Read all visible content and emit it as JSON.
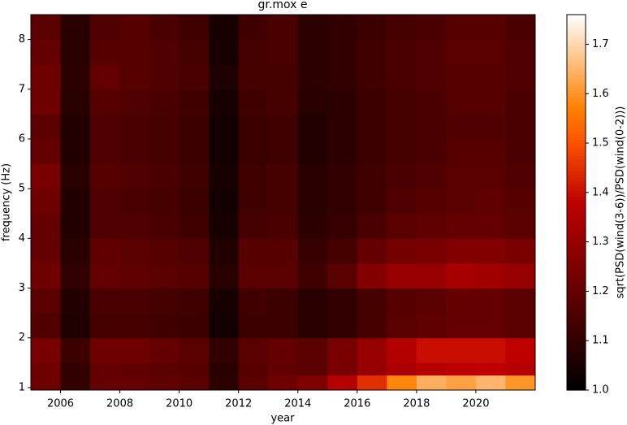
{
  "chart_data": {
    "type": "heatmap",
    "title": "gr.mox e",
    "xlabel": "year",
    "ylabel": "frequency (Hz)",
    "colorbar_label": "sqrt(PSD(wind(3-6))/PSD(wind(0-2)))",
    "colormap": "gist_heat",
    "x": [
      2005,
      2006,
      2007,
      2008,
      2009,
      2010,
      2011,
      2012,
      2013,
      2014,
      2015,
      2016,
      2017,
      2018,
      2019,
      2020,
      2021,
      2022
    ],
    "y": [
      0.95,
      1.25,
      1.5,
      2,
      2.5,
      3,
      3.5,
      4,
      4.5,
      5,
      5.5,
      6,
      6.5,
      7,
      7.5,
      8,
      8.5
    ],
    "z": [
      [
        1.22,
        1.1,
        1.2,
        1.2,
        1.19,
        1.18,
        1.09,
        1.18,
        1.22,
        1.25,
        1.36,
        1.45,
        1.58,
        1.64,
        1.62,
        1.65,
        1.6
      ],
      [
        1.22,
        1.1,
        1.2,
        1.19,
        1.18,
        1.17,
        1.08,
        1.17,
        1.19,
        1.18,
        1.24,
        1.3,
        1.34,
        1.36,
        1.37,
        1.38,
        1.36
      ],
      [
        1.24,
        1.12,
        1.22,
        1.22,
        1.2,
        1.18,
        1.1,
        1.18,
        1.2,
        1.18,
        1.24,
        1.3,
        1.36,
        1.4,
        1.4,
        1.4,
        1.38
      ],
      [
        1.16,
        1.06,
        1.14,
        1.14,
        1.13,
        1.12,
        1.04,
        1.12,
        1.12,
        1.08,
        1.1,
        1.14,
        1.18,
        1.19,
        1.2,
        1.2,
        1.18
      ],
      [
        1.18,
        1.07,
        1.15,
        1.15,
        1.14,
        1.13,
        1.05,
        1.13,
        1.12,
        1.08,
        1.1,
        1.14,
        1.17,
        1.18,
        1.2,
        1.2,
        1.18
      ],
      [
        1.22,
        1.1,
        1.2,
        1.19,
        1.18,
        1.17,
        1.08,
        1.18,
        1.18,
        1.13,
        1.18,
        1.26,
        1.3,
        1.3,
        1.33,
        1.32,
        1.3
      ],
      [
        1.2,
        1.08,
        1.19,
        1.18,
        1.17,
        1.16,
        1.07,
        1.17,
        1.17,
        1.11,
        1.14,
        1.2,
        1.23,
        1.24,
        1.26,
        1.26,
        1.24
      ],
      [
        1.2,
        1.07,
        1.16,
        1.16,
        1.15,
        1.13,
        1.05,
        1.14,
        1.15,
        1.09,
        1.11,
        1.15,
        1.18,
        1.19,
        1.2,
        1.2,
        1.18
      ],
      [
        1.22,
        1.07,
        1.16,
        1.15,
        1.14,
        1.12,
        1.04,
        1.13,
        1.14,
        1.08,
        1.1,
        1.13,
        1.16,
        1.17,
        1.18,
        1.19,
        1.17
      ],
      [
        1.24,
        1.08,
        1.17,
        1.16,
        1.15,
        1.13,
        1.05,
        1.13,
        1.14,
        1.08,
        1.1,
        1.13,
        1.15,
        1.16,
        1.18,
        1.18,
        1.16
      ],
      [
        1.2,
        1.07,
        1.16,
        1.15,
        1.14,
        1.12,
        1.04,
        1.12,
        1.13,
        1.07,
        1.09,
        1.12,
        1.14,
        1.15,
        1.17,
        1.17,
        1.15
      ],
      [
        1.18,
        1.07,
        1.16,
        1.15,
        1.14,
        1.12,
        1.04,
        1.12,
        1.13,
        1.07,
        1.09,
        1.12,
        1.14,
        1.15,
        1.16,
        1.16,
        1.15
      ],
      [
        1.22,
        1.08,
        1.17,
        1.16,
        1.15,
        1.13,
        1.05,
        1.13,
        1.14,
        1.08,
        1.09,
        1.12,
        1.14,
        1.15,
        1.17,
        1.17,
        1.15
      ],
      [
        1.22,
        1.09,
        1.2,
        1.17,
        1.16,
        1.15,
        1.06,
        1.14,
        1.14,
        1.09,
        1.1,
        1.13,
        1.15,
        1.16,
        1.17,
        1.17,
        1.16
      ],
      [
        1.2,
        1.08,
        1.17,
        1.17,
        1.16,
        1.14,
        1.05,
        1.14,
        1.15,
        1.09,
        1.1,
        1.13,
        1.15,
        1.16,
        1.18,
        1.18,
        1.16
      ],
      [
        1.18,
        1.08,
        1.16,
        1.17,
        1.15,
        1.13,
        1.05,
        1.13,
        1.15,
        1.09,
        1.1,
        1.12,
        1.14,
        1.15,
        1.17,
        1.17,
        1.15
      ]
    ],
    "xlim": [
      2005,
      2022
    ],
    "xticks": [
      2006,
      2008,
      2010,
      2012,
      2014,
      2016,
      2018,
      2020
    ],
    "ylim": [
      0.95,
      8.5
    ],
    "yticks": [
      1,
      2,
      3,
      4,
      5,
      6,
      7,
      8
    ],
    "clim": [
      1.0,
      1.76
    ],
    "cticks": [
      {
        "value": 1,
        "label": "1.0"
      },
      1.1,
      1.2,
      1.3,
      1.4,
      1.5,
      1.6,
      1.7
    ]
  }
}
